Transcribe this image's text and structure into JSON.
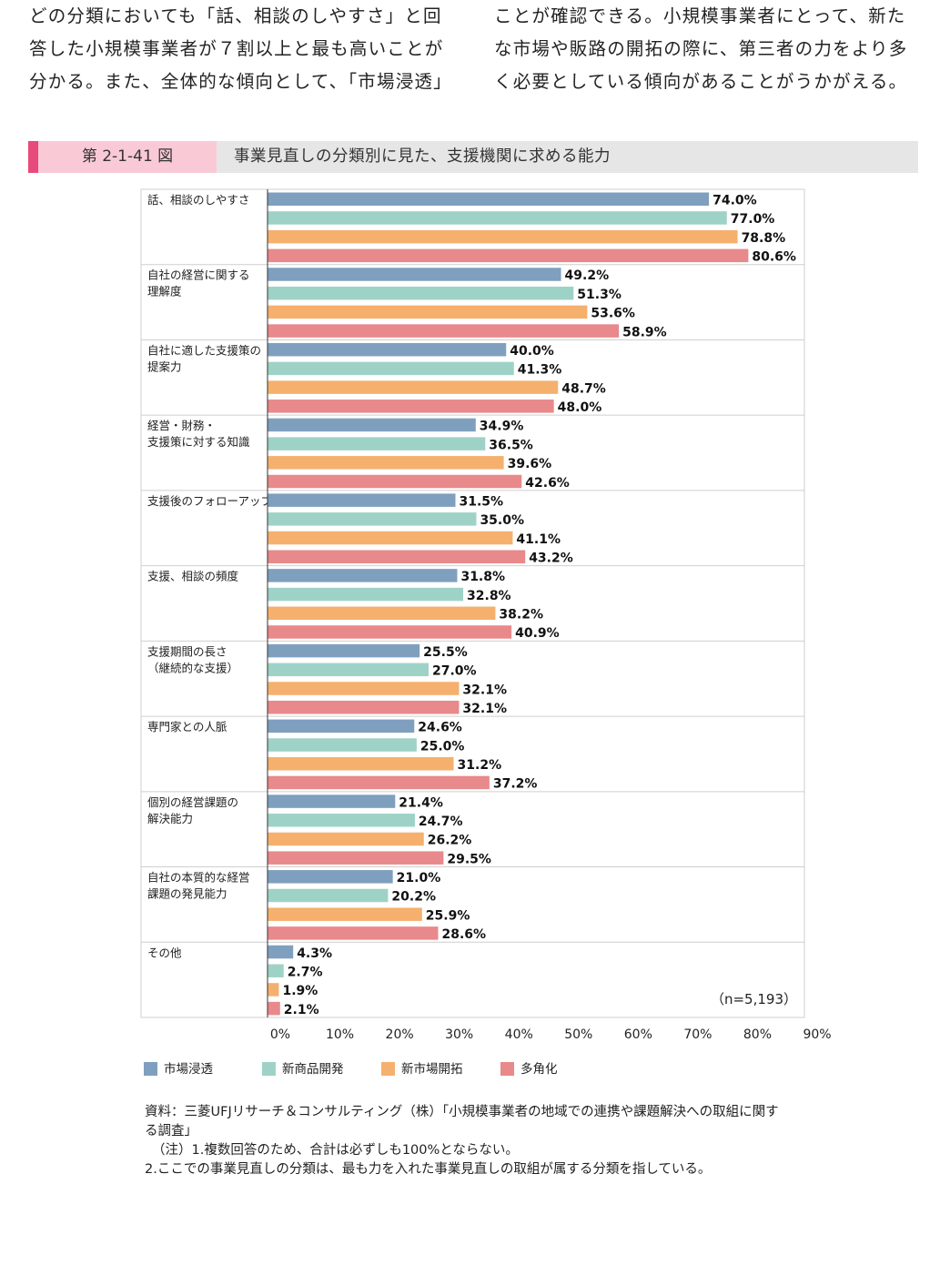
{
  "paragraph_left": [
    "どの分類においても「話、相談のしやすさ」と回",
    "答した小規模事業者が７割以上と最も高いことが",
    "分かる。また、全体的な傾向として、「市場浸透」"
  ],
  "paragraph_right": [
    "ことが確認できる。小規模事業者にとって、新た",
    "な市場や販路の開拓の際に、第三者の力をより多",
    "く必要としている傾向があることがうかがえる。"
  ],
  "figure": {
    "number": "第 2-1-41 図",
    "title": "事業見直しの分類別に見た、支援機関に求める能力"
  },
  "chart_data": {
    "type": "bar",
    "orientation": "horizontal",
    "title": "事業見直しの分類別に見た、支援機関に求める能力",
    "categories": [
      [
        "話、相談のしやすさ"
      ],
      [
        "自社の経営に関する",
        "理解度"
      ],
      [
        "自社に適した支援策の",
        "提案力"
      ],
      [
        "経営・財務・",
        "支援策に対する知識"
      ],
      [
        "支援後のフォローアップ"
      ],
      [
        "支援、相談の頻度"
      ],
      [
        "支援期間の長さ",
        "（継続的な支援）"
      ],
      [
        "専門家との人脈"
      ],
      [
        "個別の経営課題の",
        "解決能力"
      ],
      [
        "自社の本質的な経営",
        "課題の発見能力"
      ],
      [
        "その他"
      ]
    ],
    "series": [
      {
        "name": "市場浸透",
        "color": "#7f9fbf",
        "values": [
          74.0,
          49.2,
          40.0,
          34.9,
          31.5,
          31.8,
          25.5,
          24.6,
          21.4,
          21.0,
          4.3
        ]
      },
      {
        "name": "新商品開発",
        "color": "#9fd2c7",
        "values": [
          77.0,
          51.3,
          41.3,
          36.5,
          35.0,
          32.8,
          27.0,
          25.0,
          24.7,
          20.2,
          2.7
        ]
      },
      {
        "name": "新市場開拓",
        "color": "#f5b06e",
        "values": [
          78.8,
          53.6,
          48.7,
          39.6,
          41.1,
          38.2,
          32.1,
          31.2,
          26.2,
          25.9,
          1.9
        ]
      },
      {
        "name": "多角化",
        "color": "#e8898b",
        "values": [
          80.6,
          58.9,
          48.0,
          42.6,
          43.2,
          40.9,
          32.1,
          37.2,
          29.5,
          28.6,
          2.1
        ]
      }
    ],
    "xlim": [
      0,
      90
    ],
    "x_ticks": [
      "0%",
      "10%",
      "20%",
      "30%",
      "40%",
      "50%",
      "60%",
      "70%",
      "80%",
      "90%"
    ],
    "value_suffix": "%",
    "sample_note": "（n=5,193）",
    "legend_position": "bottom",
    "grid": false
  },
  "source": {
    "line1": "資料：三菱UFJリサーチ＆コンサルティング（株）「小規模事業者の地域での連携や課題解決への取組に関す",
    "line2": "る調査」",
    "note1": "（注）1.複数回答のため、合計は必ずしも100%とならない。",
    "note2": "2.ここでの事業見直しの分類は、最も力を入れた事業見直しの取組が属する分類を指している。"
  }
}
